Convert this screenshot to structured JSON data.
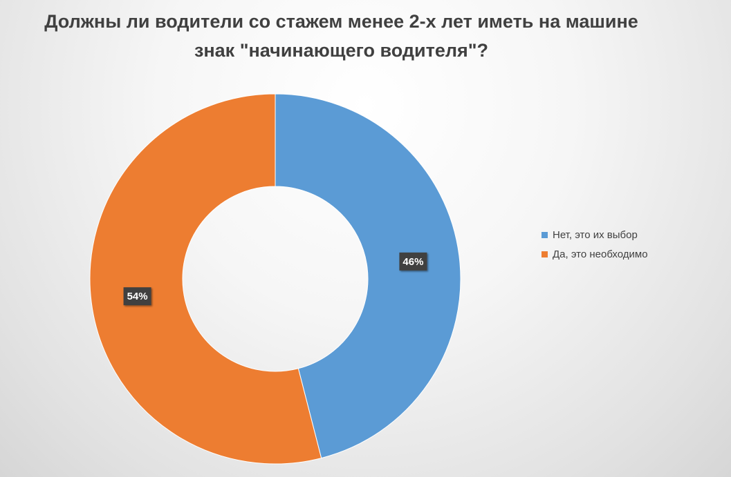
{
  "chart_data": {
    "type": "pie",
    "variant": "doughnut",
    "title": "Должны ли водители со стажем менее 2-х лет иметь на машине знак \"начинающего водителя\"?",
    "categories": [
      "Нет, это их выбор",
      "Да, это необходимо"
    ],
    "values": [
      46,
      54
    ],
    "data_labels": [
      "46%",
      "54%"
    ],
    "colors": [
      "#5B9BD5",
      "#ED7D31"
    ],
    "start_angle_deg": 0,
    "direction": "clockwise",
    "legend": "right"
  }
}
